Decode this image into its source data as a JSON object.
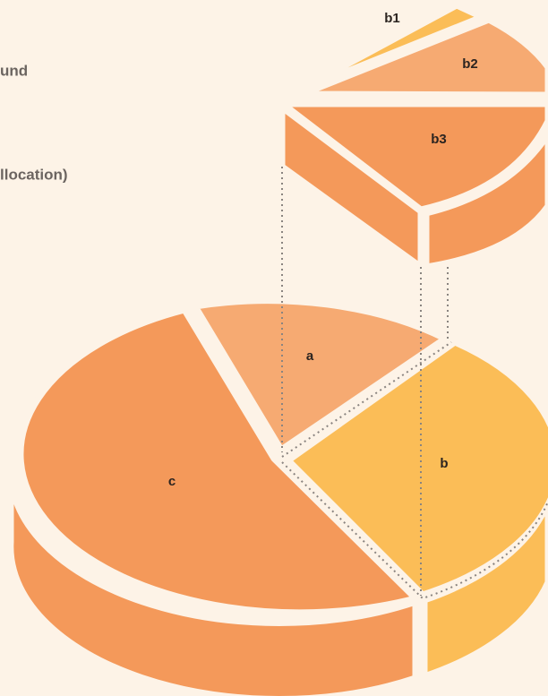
{
  "fragments": [
    "und",
    "llocation)"
  ],
  "slices": {
    "a": "a",
    "b": "b",
    "c": "c"
  },
  "detail": {
    "b1": "b1",
    "b2": "b2",
    "b3": "b3"
  }
}
